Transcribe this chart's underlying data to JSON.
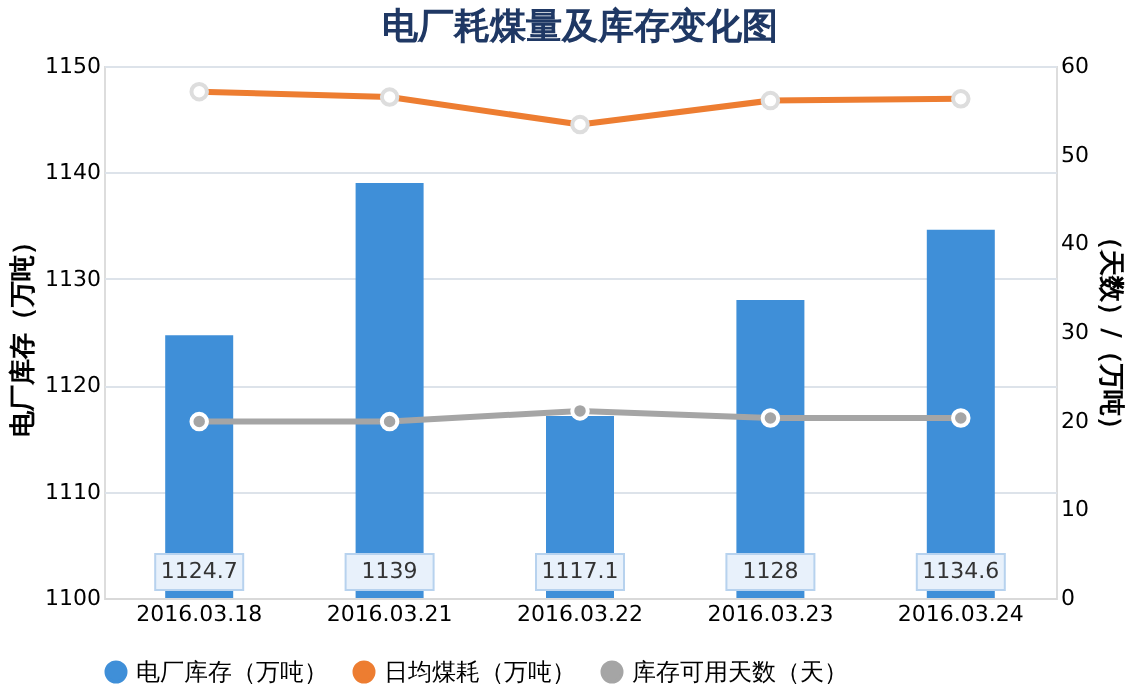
{
  "chart_data": {
    "type": "bar",
    "title": "电厂耗煤量及库存变化图",
    "categories": [
      "2016.03.18",
      "2016.03.21",
      "2016.03.22",
      "2016.03.23",
      "2016.03.24"
    ],
    "ylabel": "电厂库存（万吨）",
    "y2label": "（天数）/（万吨）",
    "series": [
      {
        "name": "电厂库存（万吨）",
        "color": "#3f8fd8",
        "values": [
          1124.7,
          1139,
          1117.1,
          1128,
          1134.6
        ],
        "value_labels": [
          "1124.7",
          "1139",
          "1117.1",
          "1128",
          "1134.6"
        ]
      },
      {
        "name": "日均煤耗（万吨）",
        "type": "line",
        "axis": "y2",
        "color": "#ed7d31",
        "values": [
          57.1,
          56.5,
          53.4,
          56.1,
          56.3
        ]
      },
      {
        "name": "库存可用天数（天）",
        "type": "line",
        "axis": "y2",
        "color": "#a5a5a5",
        "values": [
          19.9,
          19.9,
          21.1,
          20.3,
          20.3
        ]
      }
    ],
    "ylim": [
      1100,
      1150
    ],
    "yticks": [
      1100,
      1110,
      1120,
      1130,
      1140,
      1150
    ],
    "y2lim": [
      0,
      60
    ],
    "y2ticks": [
      0,
      10,
      20,
      30,
      40,
      50,
      60
    ],
    "grid": "y",
    "legend": "bottom",
    "marker": "circle",
    "line_style": "solid"
  }
}
